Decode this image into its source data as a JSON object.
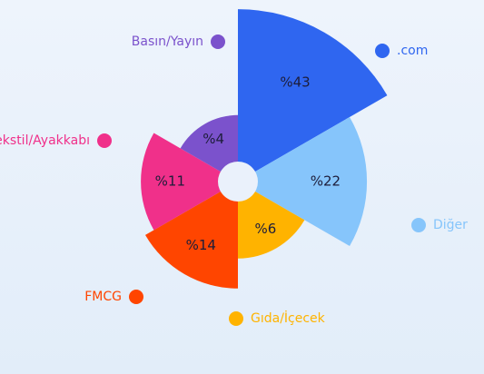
{
  "chart_data": {
    "type": "rose",
    "categories": [
      ".com",
      "Diğer",
      "Gıda/İçecek",
      "FMCG",
      "Tekstil/Ayakkabı",
      "Basın/Yayın"
    ],
    "values": [
      43,
      22,
      6,
      14,
      11,
      4
    ],
    "value_labels": [
      "%43",
      "%22",
      "%6",
      "%14",
      "%11",
      "%4"
    ],
    "colors": [
      "#2f66f0",
      "#86c5fb",
      "#ffb300",
      "#ff4500",
      "#f0308a",
      "#7b52cc"
    ]
  }
}
